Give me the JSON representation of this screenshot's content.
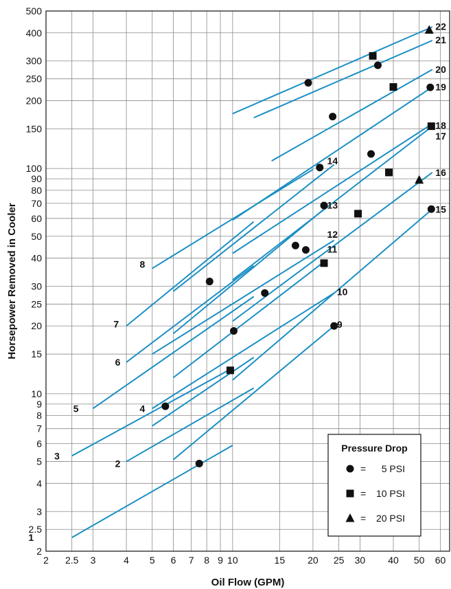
{
  "chart_data": {
    "type": "line",
    "xscale": "log",
    "yscale": "log",
    "xlim": [
      2,
      65
    ],
    "ylim": [
      2,
      500
    ],
    "xlabel": "Oil Flow (GPM)",
    "ylabel": "Horsepower Removed in Cooler",
    "grid": true,
    "line_color": "#1a8fc4",
    "x_ticks": [
      {
        "v": 2,
        "t": "2"
      },
      {
        "v": 2.5,
        "t": "2.5"
      },
      {
        "v": 3,
        "t": "3"
      },
      {
        "v": 4,
        "t": "4"
      },
      {
        "v": 5,
        "t": "5"
      },
      {
        "v": 6,
        "t": "6"
      },
      {
        "v": 7,
        "t": "7"
      },
      {
        "v": 8,
        "t": "8"
      },
      {
        "v": 9,
        "t": "9"
      },
      {
        "v": 10,
        "t": "10"
      },
      {
        "v": 15,
        "t": "15"
      },
      {
        "v": 20,
        "t": "20"
      },
      {
        "v": 25,
        "t": "25"
      },
      {
        "v": 30,
        "t": "30"
      },
      {
        "v": 40,
        "t": "40"
      },
      {
        "v": 50,
        "t": "50"
      },
      {
        "v": 60,
        "t": "60"
      }
    ],
    "y_ticks": [
      {
        "v": 2,
        "t": "2"
      },
      {
        "v": 2.5,
        "t": "2.5"
      },
      {
        "v": 3,
        "t": "3"
      },
      {
        "v": 4,
        "t": "4"
      },
      {
        "v": 5,
        "t": "5"
      },
      {
        "v": 6,
        "t": "6"
      },
      {
        "v": 7,
        "t": "7"
      },
      {
        "v": 8,
        "t": "8"
      },
      {
        "v": 9,
        "t": "9"
      },
      {
        "v": 10,
        "t": "10"
      },
      {
        "v": 15,
        "t": "15"
      },
      {
        "v": 20,
        "t": "20"
      },
      {
        "v": 25,
        "t": "25"
      },
      {
        "v": 30,
        "t": "30"
      },
      {
        "v": 40,
        "t": "40"
      },
      {
        "v": 50,
        "t": "50"
      },
      {
        "v": 60,
        "t": "60"
      },
      {
        "v": 70,
        "t": "70"
      },
      {
        "v": 80,
        "t": "80"
      },
      {
        "v": 90,
        "t": "90"
      },
      {
        "v": 100,
        "t": "100"
      },
      {
        "v": 150,
        "t": "150"
      },
      {
        "v": 200,
        "t": "200"
      },
      {
        "v": 250,
        "t": "250"
      },
      {
        "v": 300,
        "t": "300"
      },
      {
        "v": 400,
        "t": "400"
      },
      {
        "v": 500,
        "t": "500"
      }
    ],
    "series": [
      {
        "label": "1",
        "x": [
          2.5,
          10
        ],
        "y": [
          2.3,
          5.9
        ],
        "label_side": "start"
      },
      {
        "label": "2",
        "x": [
          4,
          12
        ],
        "y": [
          5.0,
          10.6
        ],
        "label_side": "start"
      },
      {
        "label": "3",
        "x": [
          2.5,
          10
        ],
        "y": [
          5.3,
          13.0
        ],
        "label_side": "start"
      },
      {
        "label": "4",
        "x": [
          5,
          12
        ],
        "y": [
          7.2,
          14.5
        ],
        "label_side": "start"
      },
      {
        "label": "5",
        "x": [
          3,
          12
        ],
        "y": [
          8.6,
          27.0
        ],
        "label_side": "start"
      },
      {
        "label": "6",
        "x": [
          4,
          12
        ],
        "y": [
          13.8,
          37.0
        ],
        "label_side": "start"
      },
      {
        "label": "7",
        "x": [
          4,
          12
        ],
        "y": [
          20.0,
          58.0
        ],
        "label_side": "start"
      },
      {
        "label": "8",
        "x": [
          5,
          20
        ],
        "y": [
          36.0,
          99.0
        ],
        "label_side": "start"
      },
      {
        "label": "9",
        "x": [
          6,
          24
        ],
        "y": [
          5.1,
          20.0
        ],
        "label_side": "end"
      },
      {
        "label": "10",
        "x": [
          5,
          24
        ],
        "y": [
          8.6,
          28.0
        ],
        "label_side": "end"
      },
      {
        "label": "11",
        "x": [
          6,
          22
        ],
        "y": [
          11.8,
          38.5
        ],
        "label_side": "end"
      },
      {
        "label": "12",
        "x": [
          5,
          24
        ],
        "y": [
          15.0,
          48.0
        ],
        "label_side": "end"
      },
      {
        "label": "13",
        "x": [
          6,
          22
        ],
        "y": [
          18.5,
          66.0
        ],
        "label_side": "end"
      },
      {
        "label": "14",
        "x": [
          6,
          24
        ],
        "y": [
          28.5,
          104.0
        ],
        "label_side": "end"
      },
      {
        "label": "15",
        "x": [
          10,
          56
        ],
        "y": [
          11.5,
          66.0
        ],
        "label_side": "end"
      },
      {
        "label": "16",
        "x": [
          10,
          56
        ],
        "y": [
          21.0,
          96.0
        ],
        "label_side": "end"
      },
      {
        "label": "17",
        "x": [
          10,
          56
        ],
        "y": [
          32.0,
          154.0
        ],
        "label_side": "end"
      },
      {
        "label": "18",
        "x": [
          10,
          56
        ],
        "y": [
          42.0,
          158.0
        ],
        "label_side": "end"
      },
      {
        "label": "19",
        "x": [
          10,
          56
        ],
        "y": [
          59.0,
          230.0
        ],
        "label_side": "end"
      },
      {
        "label": "20",
        "x": [
          14,
          56
        ],
        "y": [
          108.0,
          275.0
        ],
        "label_side": "end"
      },
      {
        "label": "21",
        "x": [
          12,
          56
        ],
        "y": [
          168.0,
          370.0
        ],
        "label_side": "end"
      },
      {
        "label": "22",
        "x": [
          10,
          56
        ],
        "y": [
          175.0,
          425.0
        ],
        "label_side": "end"
      }
    ],
    "line_labels_pos": {
      "1": [
        1.8,
        2.3
      ],
      "2": [
        3.8,
        4.9
      ],
      "3": [
        2.25,
        5.3
      ],
      "4": [
        4.7,
        8.6
      ],
      "5": [
        2.65,
        8.6
      ],
      "6": [
        3.8,
        13.8
      ],
      "7": [
        3.75,
        20.4
      ],
      "8": [
        4.7,
        37.5
      ],
      "9": [
        24.6,
        20.3
      ],
      "10": [
        24.6,
        28.4
      ],
      "11": [
        22.6,
        43.8
      ],
      "12": [
        22.6,
        51.0
      ],
      "13": [
        22.6,
        68.8
      ],
      "14": [
        22.6,
        108.0
      ],
      "15": [
        57.5,
        66.0
      ],
      "16": [
        57.5,
        96.0
      ],
      "17": [
        57.5,
        139.0
      ],
      "18": [
        57.5,
        155.0
      ],
      "19": [
        57.5,
        230.0
      ],
      "20": [
        57.5,
        275.0
      ],
      "21": [
        57.5,
        372.0
      ],
      "22": [
        57.5,
        427.0
      ]
    },
    "markers": [
      {
        "shape": "circle",
        "x": 7.5,
        "y": 4.9
      },
      {
        "shape": "square",
        "x": 9.8,
        "y": 12.7
      },
      {
        "shape": "circle",
        "x": 5.6,
        "y": 8.8
      },
      {
        "shape": "circle",
        "x": 10.1,
        "y": 19.0
      },
      {
        "shape": "circle",
        "x": 24.0,
        "y": 20.0
      },
      {
        "shape": "circle",
        "x": 13.2,
        "y": 28.0
      },
      {
        "shape": "circle",
        "x": 8.2,
        "y": 31.5
      },
      {
        "shape": "circle",
        "x": 17.2,
        "y": 45.5
      },
      {
        "shape": "circle",
        "x": 18.8,
        "y": 43.5
      },
      {
        "shape": "square",
        "x": 22.0,
        "y": 38.0
      },
      {
        "shape": "circle",
        "x": 22.0,
        "y": 68.5
      },
      {
        "shape": "square",
        "x": 29.5,
        "y": 63.0
      },
      {
        "shape": "circle",
        "x": 21.2,
        "y": 101.0
      },
      {
        "shape": "circle",
        "x": 33.0,
        "y": 116.0
      },
      {
        "shape": "square",
        "x": 38.5,
        "y": 96.0
      },
      {
        "shape": "triangle",
        "x": 50.0,
        "y": 89.0
      },
      {
        "shape": "circle",
        "x": 55.5,
        "y": 66.0
      },
      {
        "shape": "square",
        "x": 55.5,
        "y": 154.0
      },
      {
        "shape": "circle",
        "x": 23.7,
        "y": 170.0
      },
      {
        "shape": "circle",
        "x": 55.0,
        "y": 229.0
      },
      {
        "shape": "square",
        "x": 40.0,
        "y": 230.0
      },
      {
        "shape": "circle",
        "x": 19.2,
        "y": 240.0
      },
      {
        "shape": "circle",
        "x": 35.0,
        "y": 287.0
      },
      {
        "shape": "square",
        "x": 33.5,
        "y": 316.0
      },
      {
        "shape": "triangle",
        "x": 54.5,
        "y": 412.0
      }
    ],
    "legend": {
      "title": "Pressure Drop",
      "placement": "bottom-right",
      "entries": [
        {
          "shape": "circle",
          "equals": "=",
          "text": "5 PSI"
        },
        {
          "shape": "square",
          "equals": "=",
          "text": "10 PSI"
        },
        {
          "shape": "triangle",
          "equals": "=",
          "text": "20 PSI"
        }
      ]
    }
  }
}
